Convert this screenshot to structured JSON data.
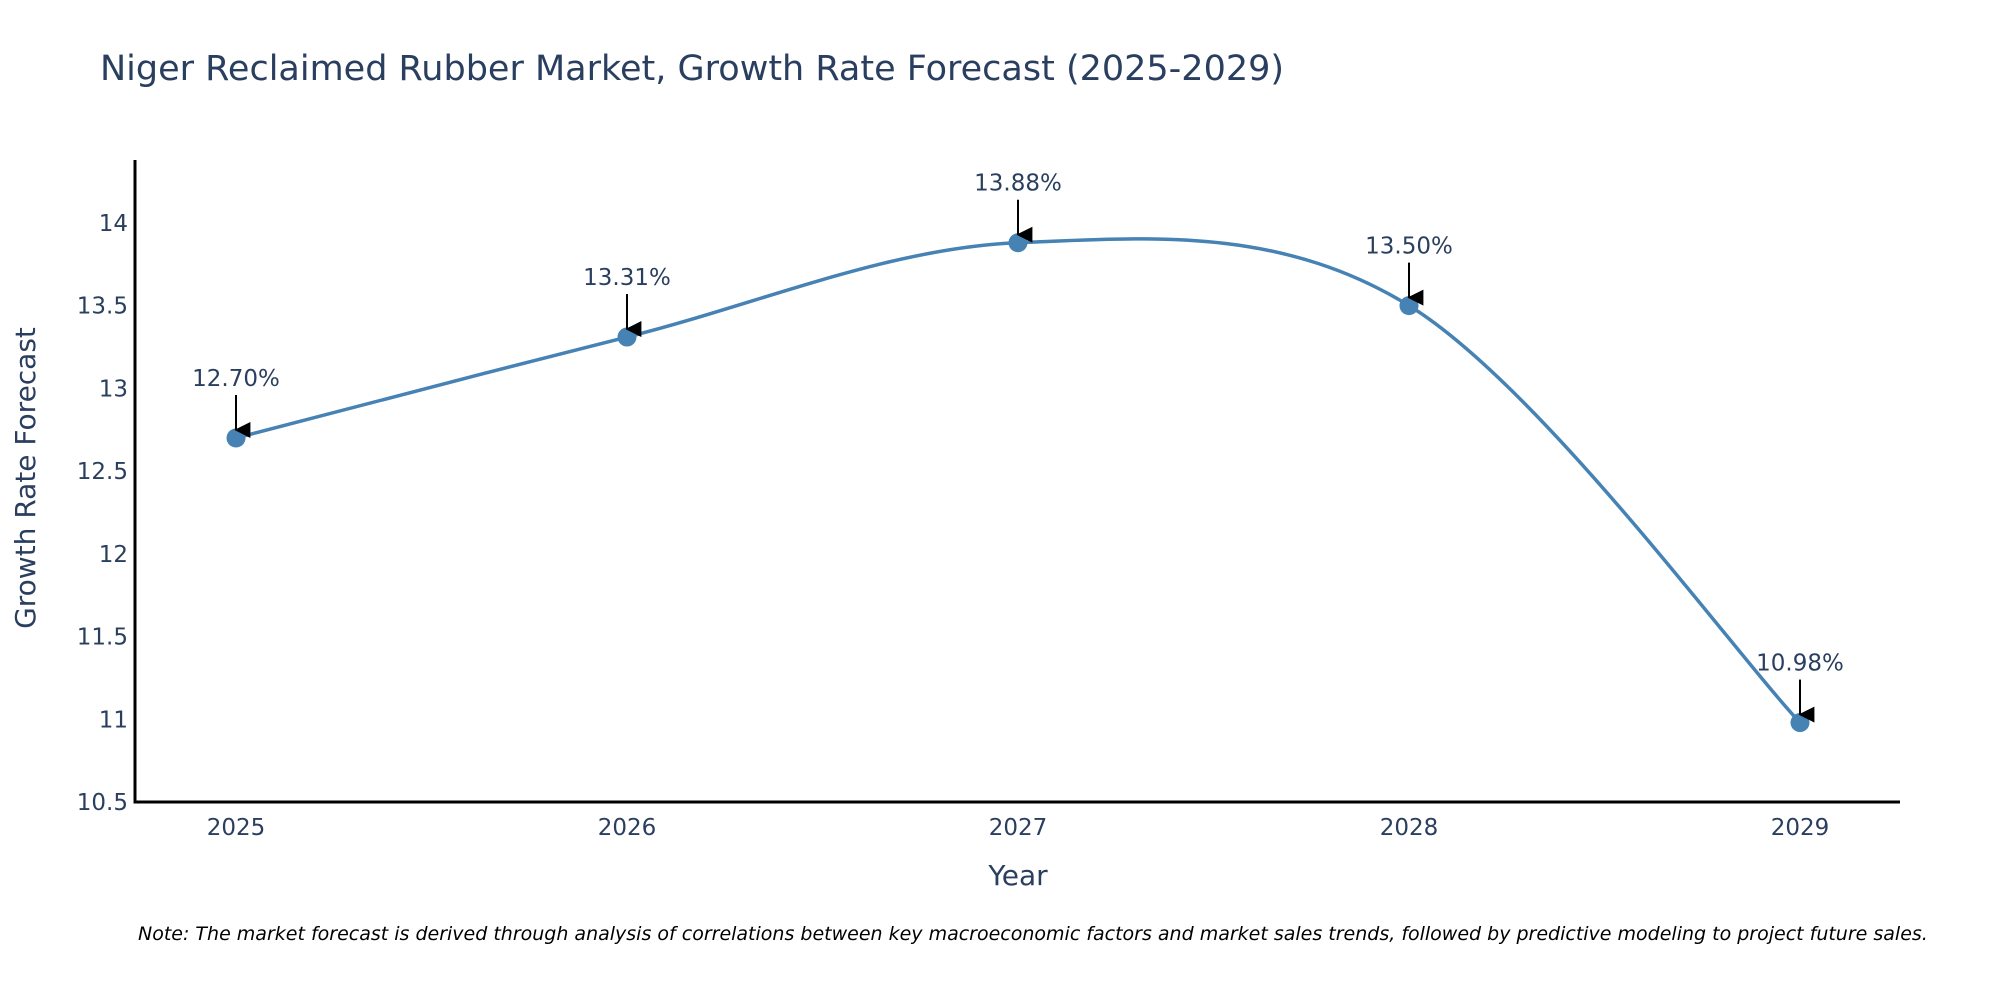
{
  "chart_data": {
    "type": "line",
    "title": "Niger Reclaimed Rubber Market, Growth Rate Forecast (2025-2029)",
    "xlabel": "Year",
    "ylabel": "Growth Rate Forecast",
    "categories": [
      "2025",
      "2026",
      "2027",
      "2028",
      "2029"
    ],
    "series": [
      {
        "name": "Growth Rate Forecast",
        "values": [
          12.7,
          13.31,
          13.88,
          13.5,
          10.98
        ],
        "labels": [
          "12.70%",
          "13.31%",
          "13.88%",
          "13.50%",
          "10.98%"
        ]
      }
    ],
    "ylim": [
      10.5,
      14.38
    ],
    "yticks": [
      10.5,
      11,
      11.5,
      12,
      12.5,
      13,
      13.5,
      14
    ],
    "ytick_labels": [
      "10.5",
      "11",
      "11.5",
      "12",
      "12.5",
      "13",
      "13.5",
      "14"
    ],
    "grid": false,
    "line_shape": "spline",
    "line_color": "#4682b4",
    "marker_color": "#4682b4",
    "annotation_arrow_color": "#000000",
    "note": "Note: The market forecast is derived through analysis of correlations between key macroeconomic factors and market sales trends, followed by predictive modeling to project future sales."
  }
}
